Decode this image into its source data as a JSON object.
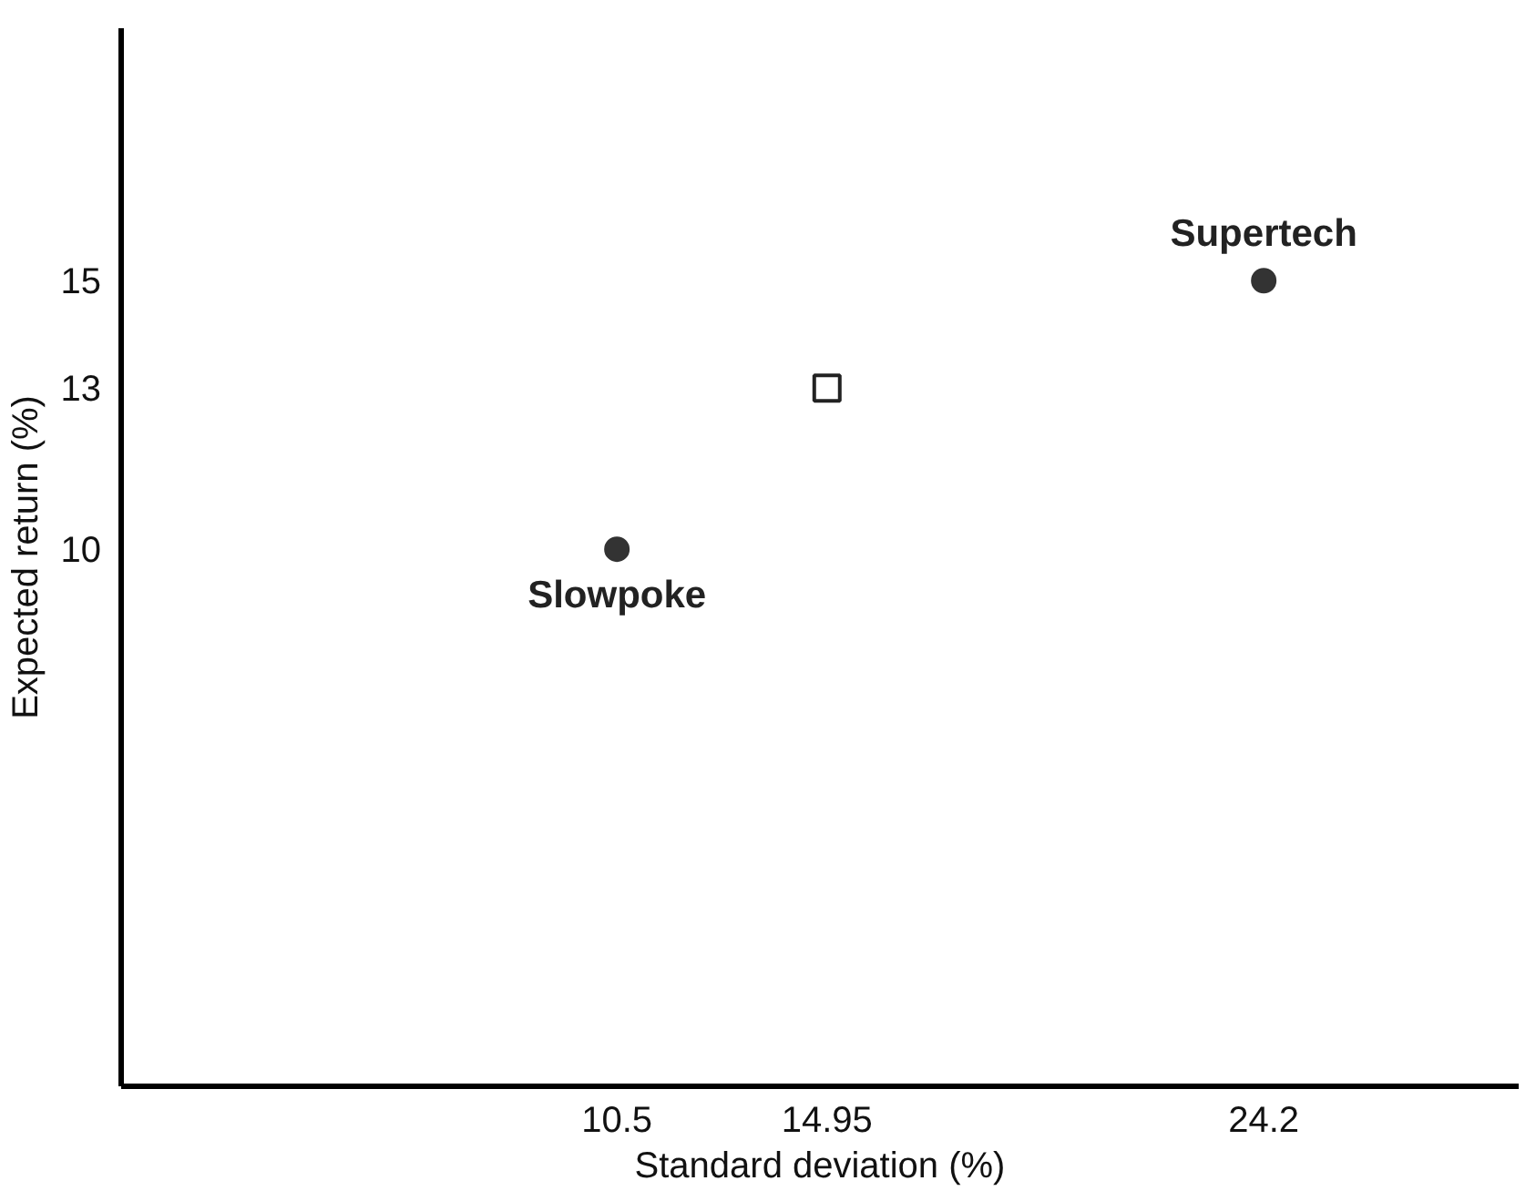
{
  "chart_data": {
    "type": "scatter",
    "xlabel": "Standard deviation (%)",
    "ylabel": "Expected return (%)",
    "xlim": [
      0,
      29.6
    ],
    "ylim": [
      0,
      19.7
    ],
    "xticks": [
      10.5,
      14.95,
      24.2
    ],
    "yticks": [
      10,
      13,
      15
    ],
    "grid": false,
    "series": [
      {
        "x": [
          10.5,
          24.2
        ],
        "values": [
          10,
          15
        ],
        "color": "#333333",
        "marker": "circle"
      },
      {
        "x": [
          14.95
        ],
        "values": [
          13
        ],
        "color": "#222222",
        "marker": "square"
      }
    ],
    "annotations": [
      {
        "text": "Slowpoke",
        "x": 10.5,
        "y": 10
      },
      {
        "text": "Supertech",
        "x": 24.2,
        "y": 15
      }
    ]
  }
}
